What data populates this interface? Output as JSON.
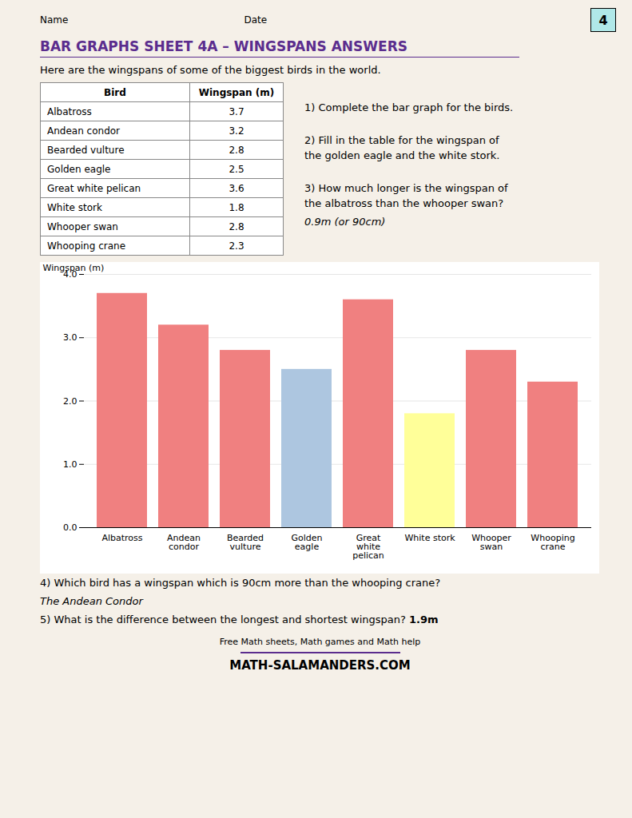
{
  "chart_data": {
    "type": "bar",
    "title": "BAR GRAPHS SHEET 4A – WINGSPANS ANSWERS",
    "categories": [
      "Albatross",
      "Andean\ncondor",
      "Bearded\nvulture",
      "Golden\neagle",
      "Great\nwhite\npelican",
      "White stork",
      "Whooper\nswan",
      "Whooping\ncrane"
    ],
    "values": [
      3.7,
      3.2,
      2.8,
      2.5,
      3.6,
      1.8,
      2.8,
      2.3
    ],
    "colors": [
      "#f08080",
      "#f08080",
      "#f08080",
      "#adc6e0",
      "#f08080",
      "#ffff99",
      "#f08080",
      "#f08080"
    ],
    "ylabel": "Wingspan (m)",
    "ylim": [
      0,
      4
    ],
    "yticks": [
      0,
      1,
      2,
      3,
      4
    ],
    "grid": true,
    "table": {
      "header": [
        "Bird",
        "Wingspan (m)"
      ],
      "rows": [
        [
          "Albatross",
          "3.7"
        ],
        [
          "Andean condor",
          "3.2"
        ],
        [
          "Bearded vulture",
          "2.8"
        ],
        [
          "Golden eagle",
          "2.5"
        ],
        [
          "Great white pelican",
          "3.6"
        ],
        [
          "White stork",
          "1.8"
        ],
        [
          "Whooper swan",
          "2.8"
        ],
        [
          "Whooping crane",
          "2.3"
        ]
      ]
    },
    "annotations": [
      "Name",
      "Date",
      "4",
      "Here are the wingspans of some of the biggest birds in the world.",
      "1) Complete the bar graph for the birds.",
      "2) Fill in the table for the wingspan of",
      "the golden eagle and the white stork.",
      "3) How much longer is the wingspan of",
      "the albatross than the whooper swan?",
      "0.9m (or 90cm)",
      "4) Which bird has a wingspan which is 90cm more than the whooping crane?",
      "The Andean Condor",
      "5) What is the difference between the longest and shortest wingspan?",
      "1.9m",
      "Free Math sheets, Math games and Math help",
      "MATH-SALAMANDERS.COM"
    ]
  }
}
